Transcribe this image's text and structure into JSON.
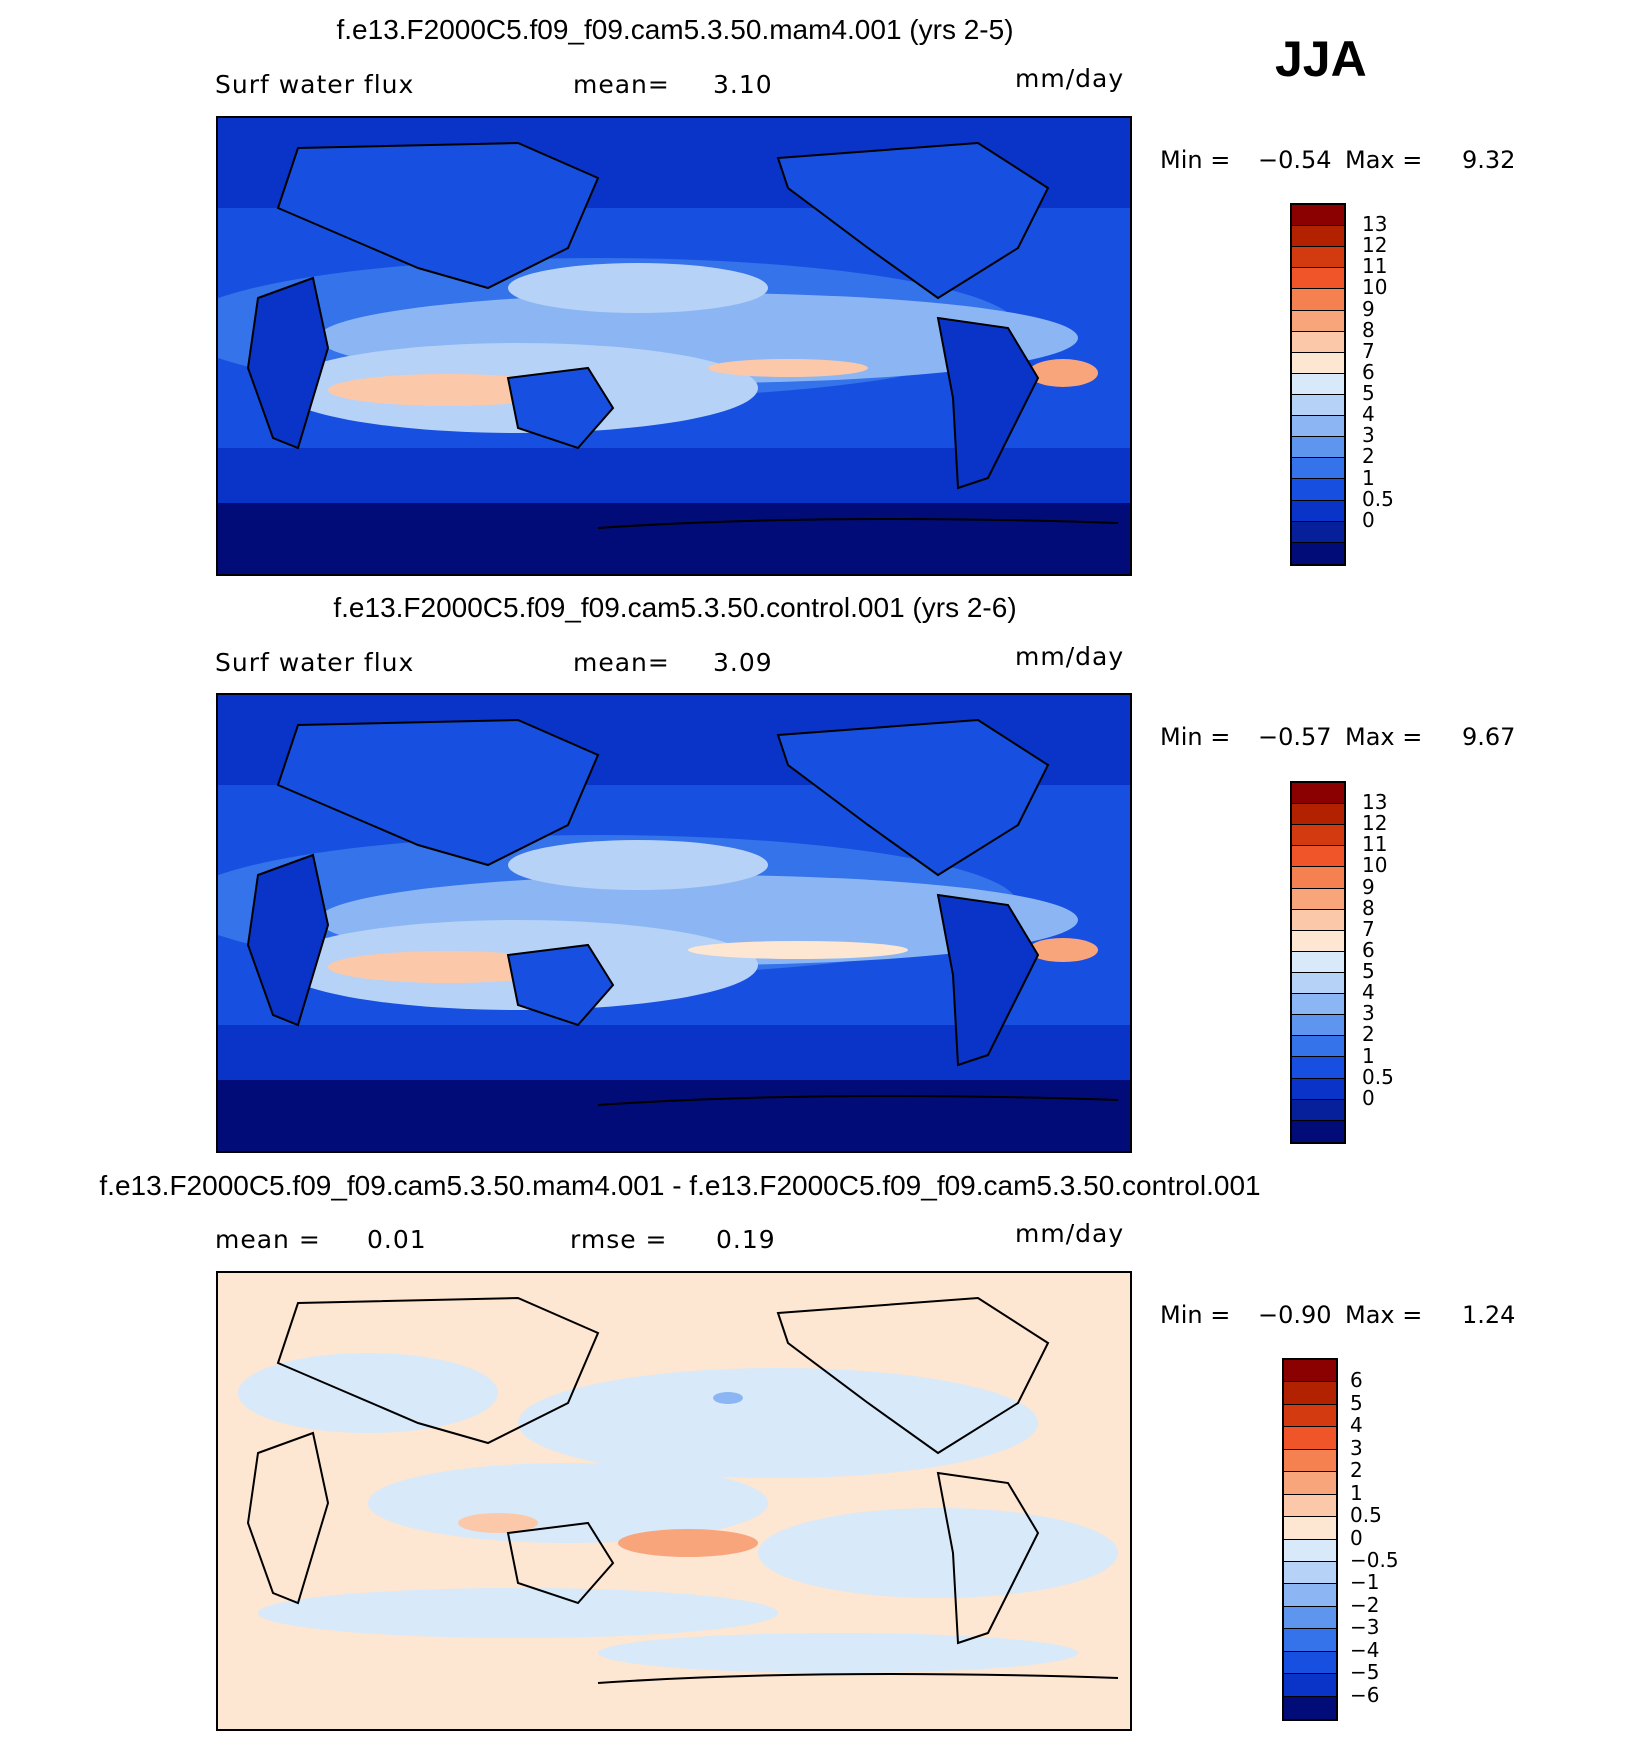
{
  "season": "JJA",
  "panels": [
    {
      "title": "f.e13.F2000C5.f09_f09.cam5.3.50.mam4.001 (yrs 2-5)",
      "left_label": "Surf water flux",
      "mid_label": "mean=",
      "mid_value": "3.10",
      "units": "mm/day",
      "min_label": "Min =",
      "min_value": "−0.54",
      "max_label": "Max =",
      "max_value": "9.32",
      "colorbar": {
        "labels": [
          "13",
          "12",
          "11",
          "10",
          "9",
          "8",
          "7",
          "6",
          "5",
          "4",
          "3",
          "2",
          "1",
          "0.5",
          "0"
        ],
        "colors": [
          "#8b0000",
          "#b22200",
          "#d43a10",
          "#f0552a",
          "#f58050",
          "#f8a57c",
          "#fbc9aa",
          "#fde6d2",
          "#d8e9fa",
          "#b6d2f7",
          "#8cb6f3",
          "#5e95ef",
          "#3573ea",
          "#1750e0",
          "#0a33c8",
          "#05209a",
          "#020c78"
        ]
      }
    },
    {
      "title": "f.e13.F2000C5.f09_f09.cam5.3.50.control.001 (yrs 2-6)",
      "left_label": "Surf water flux",
      "mid_label": "mean=",
      "mid_value": "3.09",
      "units": "mm/day",
      "min_label": "Min =",
      "min_value": "−0.57",
      "max_label": "Max =",
      "max_value": "9.67",
      "colorbar": {
        "labels": [
          "13",
          "12",
          "11",
          "10",
          "9",
          "8",
          "7",
          "6",
          "5",
          "4",
          "3",
          "2",
          "1",
          "0.5",
          "0"
        ],
        "colors": [
          "#8b0000",
          "#b22200",
          "#d43a10",
          "#f0552a",
          "#f58050",
          "#f8a57c",
          "#fbc9aa",
          "#fde6d2",
          "#d8e9fa",
          "#b6d2f7",
          "#8cb6f3",
          "#5e95ef",
          "#3573ea",
          "#1750e0",
          "#0a33c8",
          "#05209a",
          "#020c78"
        ]
      }
    },
    {
      "title": "f.e13.F2000C5.f09_f09.cam5.3.50.mam4.001 - f.e13.F2000C5.f09_f09.cam5.3.50.control.001",
      "left_label": "mean =",
      "left_value": "0.01",
      "mid_label": "rmse =",
      "mid_value": "0.19",
      "units": "mm/day",
      "min_label": "Min =",
      "min_value": "−0.90",
      "max_label": "Max =",
      "max_value": "1.24",
      "colorbar": {
        "labels": [
          "6",
          "5",
          "4",
          "3",
          "2",
          "1",
          "0.5",
          "0",
          "−0.5",
          "−1",
          "−2",
          "−3",
          "−4",
          "−5",
          "−6"
        ],
        "colors": [
          "#8b0000",
          "#b22200",
          "#d43a10",
          "#f0552a",
          "#f58050",
          "#f8a57c",
          "#fbc9aa",
          "#fde6d2",
          "#d8e9fa",
          "#b6d2f7",
          "#8cb6f3",
          "#5e95ef",
          "#3573ea",
          "#1750e0",
          "#0a33c8",
          "#020c78"
        ]
      }
    }
  ],
  "map_colors": {
    "deep": "#020c78",
    "dark": "#0a33c8",
    "mid": "#1750e0",
    "med": "#3573ea",
    "light": "#8cb6f3",
    "pale": "#b6d2f7",
    "paler": "#d8e9fa",
    "peach": "#fde6d2",
    "salmon": "#f8a57c",
    "coast": "#000000"
  }
}
